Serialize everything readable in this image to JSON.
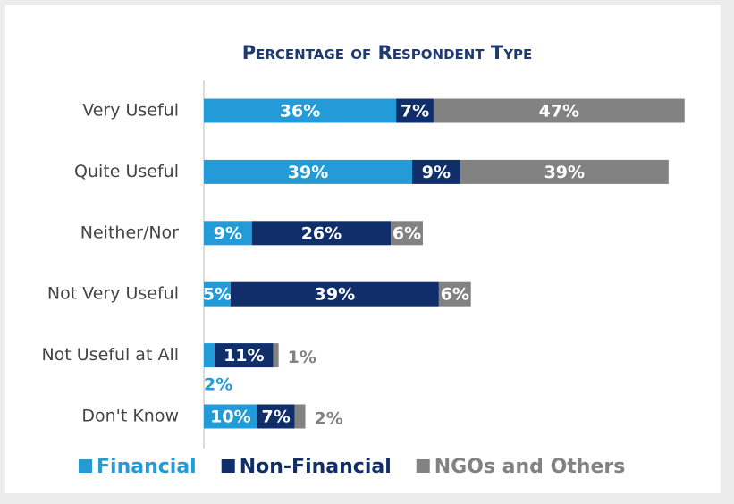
{
  "chart_data": {
    "type": "stacked-bar-horizontal",
    "title": "Percentage of Respondent Type",
    "categories": [
      "Very Useful",
      "Quite Useful",
      "Neither/Nor",
      "Not Very Useful",
      "Not Useful at All",
      "Don't Know"
    ],
    "series": [
      {
        "name": "Financial",
        "color": "#229bd8",
        "values": [
          36,
          39,
          9,
          5,
          2,
          10
        ],
        "value_labels": [
          "36%",
          "39%",
          "9%",
          "5%",
          "2%",
          "10%"
        ]
      },
      {
        "name": "Non-Financial",
        "color": "#102e6a",
        "values": [
          7,
          9,
          26,
          39,
          11,
          7
        ],
        "value_labels": [
          "7%",
          "9%",
          "26%",
          "39%",
          "11%",
          "7%"
        ]
      },
      {
        "name": "NGOs and Others",
        "color": "#828282",
        "values": [
          47,
          39,
          6,
          6,
          1,
          2
        ],
        "value_labels": [
          "47%",
          "39%",
          "6%",
          "6%",
          "1%",
          "2%"
        ]
      }
    ],
    "legend": "bottom"
  }
}
